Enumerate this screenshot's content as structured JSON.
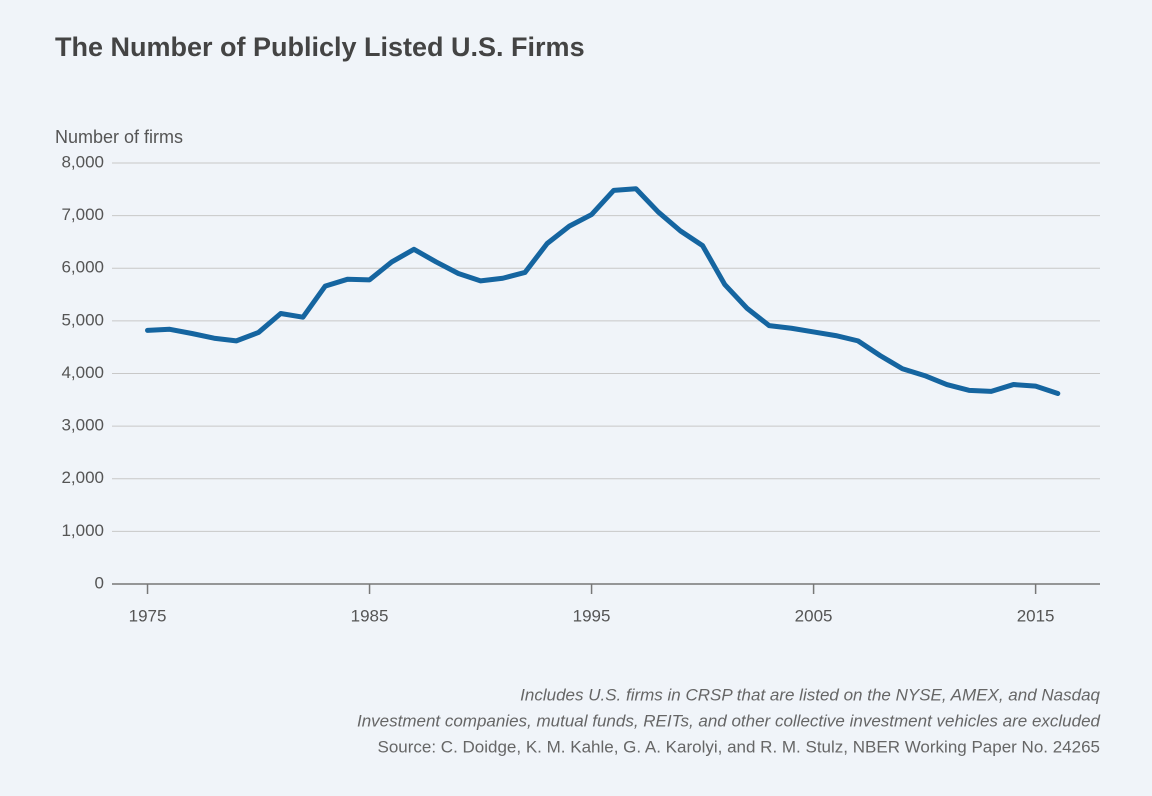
{
  "chart_data": {
    "type": "line",
    "title": "The Number of Publicly Listed U.S. Firms",
    "y_label": "Number of firms",
    "x": [
      1975,
      1976,
      1977,
      1978,
      1979,
      1980,
      1981,
      1982,
      1983,
      1984,
      1985,
      1986,
      1987,
      1988,
      1989,
      1990,
      1991,
      1992,
      1993,
      1994,
      1995,
      1996,
      1997,
      1998,
      1999,
      2000,
      2001,
      2002,
      2003,
      2004,
      2005,
      2006,
      2007,
      2008,
      2009,
      2010,
      2011,
      2012,
      2013,
      2014,
      2015,
      2016
    ],
    "series": [
      {
        "name": "Number of firms",
        "color": "#1565a0",
        "values": [
          4820,
          4840,
          4760,
          4670,
          4620,
          4780,
          5140,
          5070,
          5660,
          5790,
          5780,
          6120,
          6360,
          6120,
          5900,
          5760,
          5810,
          5920,
          6470,
          6800,
          7020,
          7480,
          7510,
          7070,
          6710,
          6430,
          5690,
          5240,
          4910,
          4860,
          4790,
          4720,
          4620,
          4340,
          4090,
          3960,
          3790,
          3680,
          3660,
          3790,
          3760,
          3620
        ]
      }
    ],
    "xlim": [
      1973.4,
      2017.9
    ],
    "xticks": [
      1975,
      1985,
      1995,
      2005,
      2015
    ],
    "ylim": [
      0,
      8000
    ],
    "yticks": [
      0,
      {
        "value": 1000,
        "label": "1,000"
      },
      {
        "value": 2000,
        "label": "2,000"
      },
      {
        "value": 3000,
        "label": "3,000"
      },
      {
        "value": 4000,
        "label": "4,000"
      },
      {
        "value": 5000,
        "label": "5,000"
      },
      {
        "value": 6000,
        "label": "6,000"
      },
      {
        "value": 7000,
        "label": "7,000"
      },
      {
        "value": 8000,
        "label": "8,000"
      }
    ],
    "grid": true,
    "notes": [
      "Includes U.S. firms in CRSP that are listed on the NYSE, AMEX, and Nasdaq",
      "Investment companies, mutual funds, REITs, and other collective investment vehicles are excluded"
    ],
    "source": "Source: C. Doidge, K. M. Kahle, G. A. Karolyi, and R. M. Stulz, NBER Working Paper No. 24265"
  }
}
